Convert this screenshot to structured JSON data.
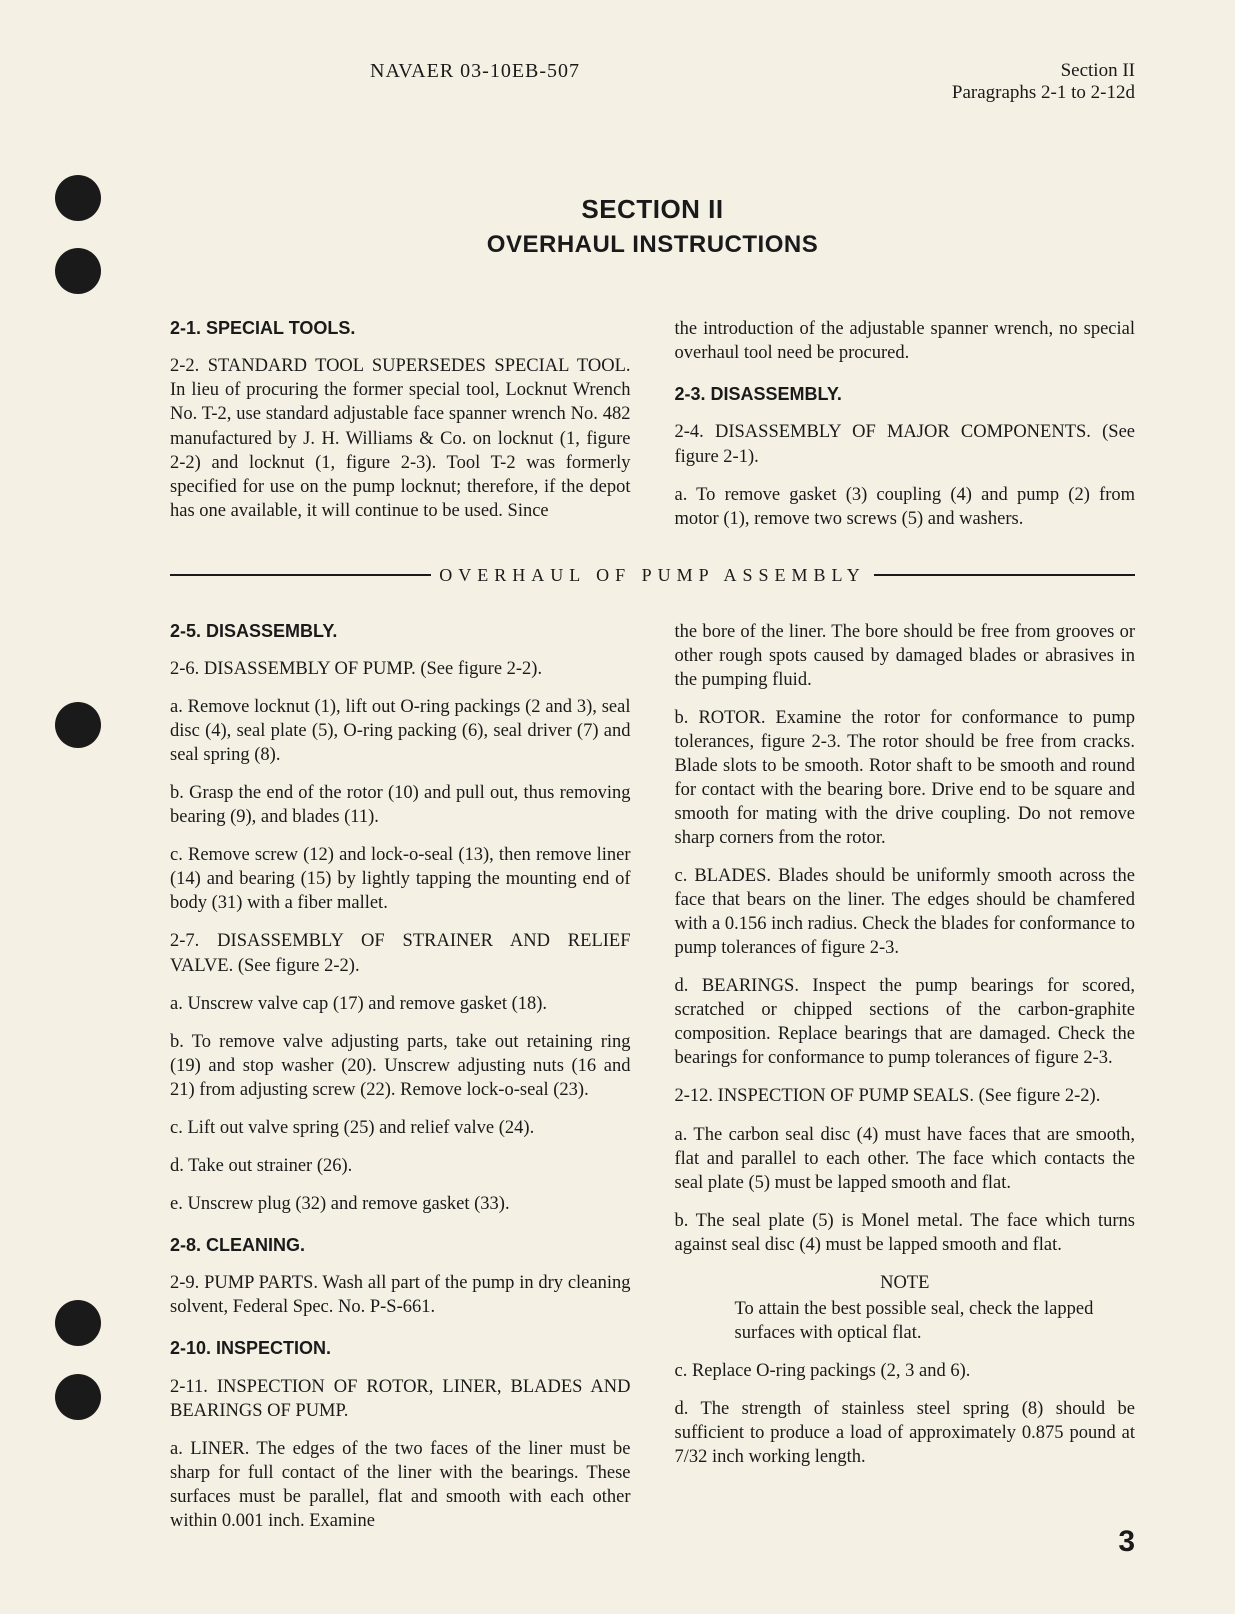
{
  "header": {
    "doc_id": "NAVAER 03-10EB-507",
    "section": "Section II",
    "paragraphs": "Paragraphs 2-1 to 2-12d"
  },
  "title": {
    "main": "SECTION II",
    "sub": "OVERHAUL INSTRUCTIONS"
  },
  "top_left": {
    "h_2_1": "2-1.  SPECIAL TOOLS.",
    "p_2_2": "2-2. STANDARD TOOL SUPERSEDES SPECIAL TOOL. In lieu of procuring the former special tool, Locknut Wrench No. T-2, use standard adjustable face spanner wrench No. 482 manufactured by J. H. Williams & Co. on locknut (1, figure 2-2) and locknut (1, figure 2-3). Tool T-2 was formerly specified for use on the pump locknut; therefore, if the depot has one available, it will continue to be used. Since"
  },
  "top_right": {
    "p_cont": "the introduction of the adjustable spanner wrench, no special overhaul tool need be procured.",
    "h_2_3": "2-3.  DISASSEMBLY.",
    "p_2_4": "2-4. DISASSEMBLY OF MAJOR COMPONENTS. (See figure 2-1).",
    "p_2_4a": "a. To remove gasket (3) coupling (4) and pump (2) from motor (1), remove two screws (5) and washers."
  },
  "divider": "OVERHAUL OF PUMP ASSEMBLY",
  "bottom_left": {
    "h_2_5": "2-5.  DISASSEMBLY.",
    "p_2_6": "2-6. DISASSEMBLY OF PUMP. (See figure 2-2).",
    "p_2_6a": "a. Remove locknut (1), lift out O-ring packings (2 and 3), seal disc (4), seal plate (5), O-ring packing (6), seal driver (7) and seal spring (8).",
    "p_2_6b": "b. Grasp the end of the rotor (10) and pull out, thus removing bearing (9), and blades (11).",
    "p_2_6c": "c. Remove screw (12) and lock-o-seal (13), then remove liner (14) and bearing (15) by lightly tapping the mounting end of body (31) with a fiber mallet.",
    "p_2_7": "2-7. DISASSEMBLY OF STRAINER AND RELIEF VALVE. (See figure 2-2).",
    "p_2_7a": "a. Unscrew valve cap (17) and remove gasket (18).",
    "p_2_7b": "b. To remove valve adjusting parts, take out retaining ring (19) and stop washer (20). Unscrew adjusting nuts (16 and 21) from adjusting screw (22). Remove lock-o-seal (23).",
    "p_2_7c": "c. Lift out valve spring (25) and relief valve (24).",
    "p_2_7d": "d. Take out strainer (26).",
    "p_2_7e": "e. Unscrew plug (32) and remove gasket (33).",
    "h_2_8": "2-8.  CLEANING.",
    "p_2_9": "2-9. PUMP PARTS. Wash all part of the pump in dry cleaning solvent, Federal Spec. No. P-S-661.",
    "h_2_10": "2-10.  INSPECTION.",
    "p_2_11": "2-11. INSPECTION OF ROTOR, LINER, BLADES AND BEARINGS OF PUMP.",
    "p_2_11a": "a. LINER. The edges of the two faces of the liner must be sharp for full contact of the liner with the bearings. These surfaces must be parallel, flat and smooth with each other within 0.001 inch. Examine"
  },
  "bottom_right": {
    "p_cont": "the bore of the liner. The bore should be free from grooves or other rough spots caused by damaged blades or abrasives in the pumping fluid.",
    "p_2_11b": "b. ROTOR. Examine the rotor for conformance to pump tolerances, figure 2-3. The rotor should be free from cracks. Blade slots to be smooth. Rotor shaft to be smooth and round for contact with the bearing bore. Drive end to be square and smooth for mating with the drive coupling. Do not remove sharp corners from the rotor.",
    "p_2_11c": "c. BLADES. Blades should be uniformly smooth across the face that bears on the liner. The edges should be chamfered with a 0.156 inch radius. Check the blades for conformance to pump tolerances of figure 2-3.",
    "p_2_11d": "d. BEARINGS. Inspect the pump bearings for scored, scratched or chipped sections of the carbon-graphite composition. Replace bearings that are damaged. Check the bearings for conformance to pump tolerances of figure 2-3.",
    "p_2_12": "2-12. INSPECTION OF PUMP SEALS. (See figure 2-2).",
    "p_2_12a": "a. The carbon seal disc (4) must have faces that are smooth, flat and parallel to each other. The face which contacts the seal plate (5) must be lapped smooth and flat.",
    "p_2_12b": "b. The seal plate (5) is Monel metal. The face which turns against seal disc (4) must be lapped smooth and flat.",
    "note_head": "NOTE",
    "note_body": "To attain the best possible seal, check the lapped surfaces with optical flat.",
    "p_2_12c": "c. Replace O-ring packings (2, 3 and 6).",
    "p_2_12d": "d. The strength of stainless steel spring (8) should be sufficient to produce a load of approximately 0.875 pound at 7/32 inch working length."
  },
  "page_number": "3",
  "holes": [
    175,
    248,
    702,
    1300,
    1374
  ],
  "colors": {
    "background": "#f5f0e4",
    "text": "#1a1a1a",
    "hole": "#1a1a1a"
  }
}
